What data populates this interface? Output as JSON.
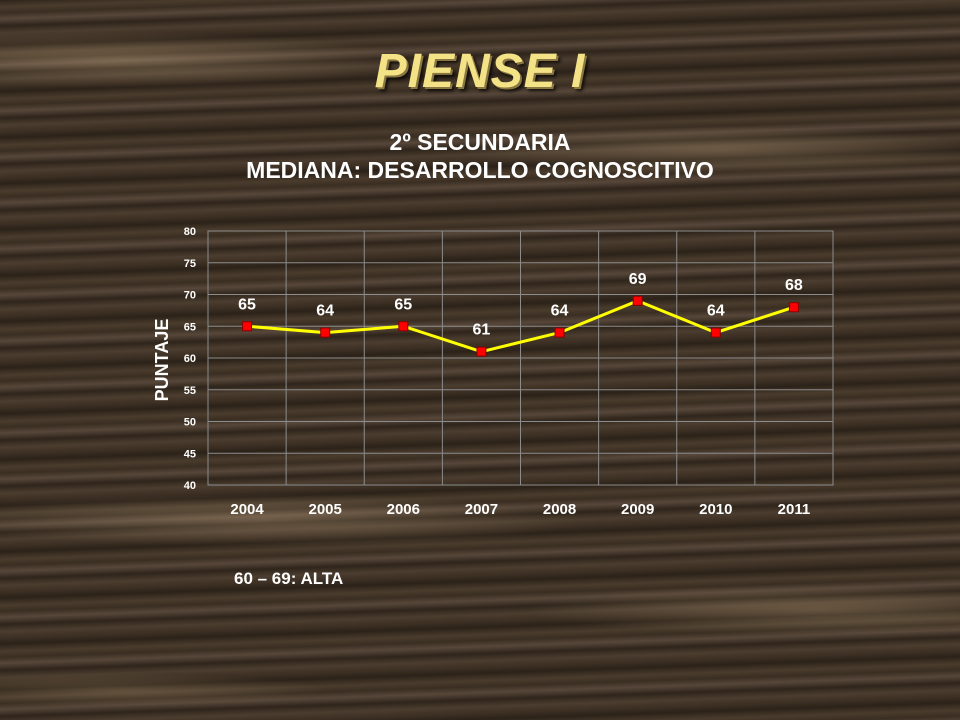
{
  "slide": {
    "title": "PIENSE I",
    "note": "60 – 69: ALTA"
  },
  "colors": {
    "title_yellow": "#f4e286",
    "line": "#ffff00",
    "marker": "#ff0000",
    "grid": "#8c8c8c",
    "text": "#ffffff"
  },
  "chart_data": {
    "type": "line",
    "title": "2º SECUNDARIA",
    "subtitle": "MEDIANA: DESARROLLO COGNOSCITIVO",
    "ylabel": "PUNTAJE",
    "xlabel": "",
    "categories": [
      "2004",
      "2005",
      "2006",
      "2007",
      "2008",
      "2009",
      "2010",
      "2011"
    ],
    "series": [
      {
        "values": [
          65,
          64,
          65,
          61,
          64,
          69,
          64,
          68
        ]
      }
    ],
    "ylim": [
      40,
      80
    ],
    "yticks": [
      40,
      45,
      50,
      55,
      60,
      65,
      70,
      75,
      80
    ],
    "grid": true,
    "data_labels": true,
    "legend": "none"
  }
}
